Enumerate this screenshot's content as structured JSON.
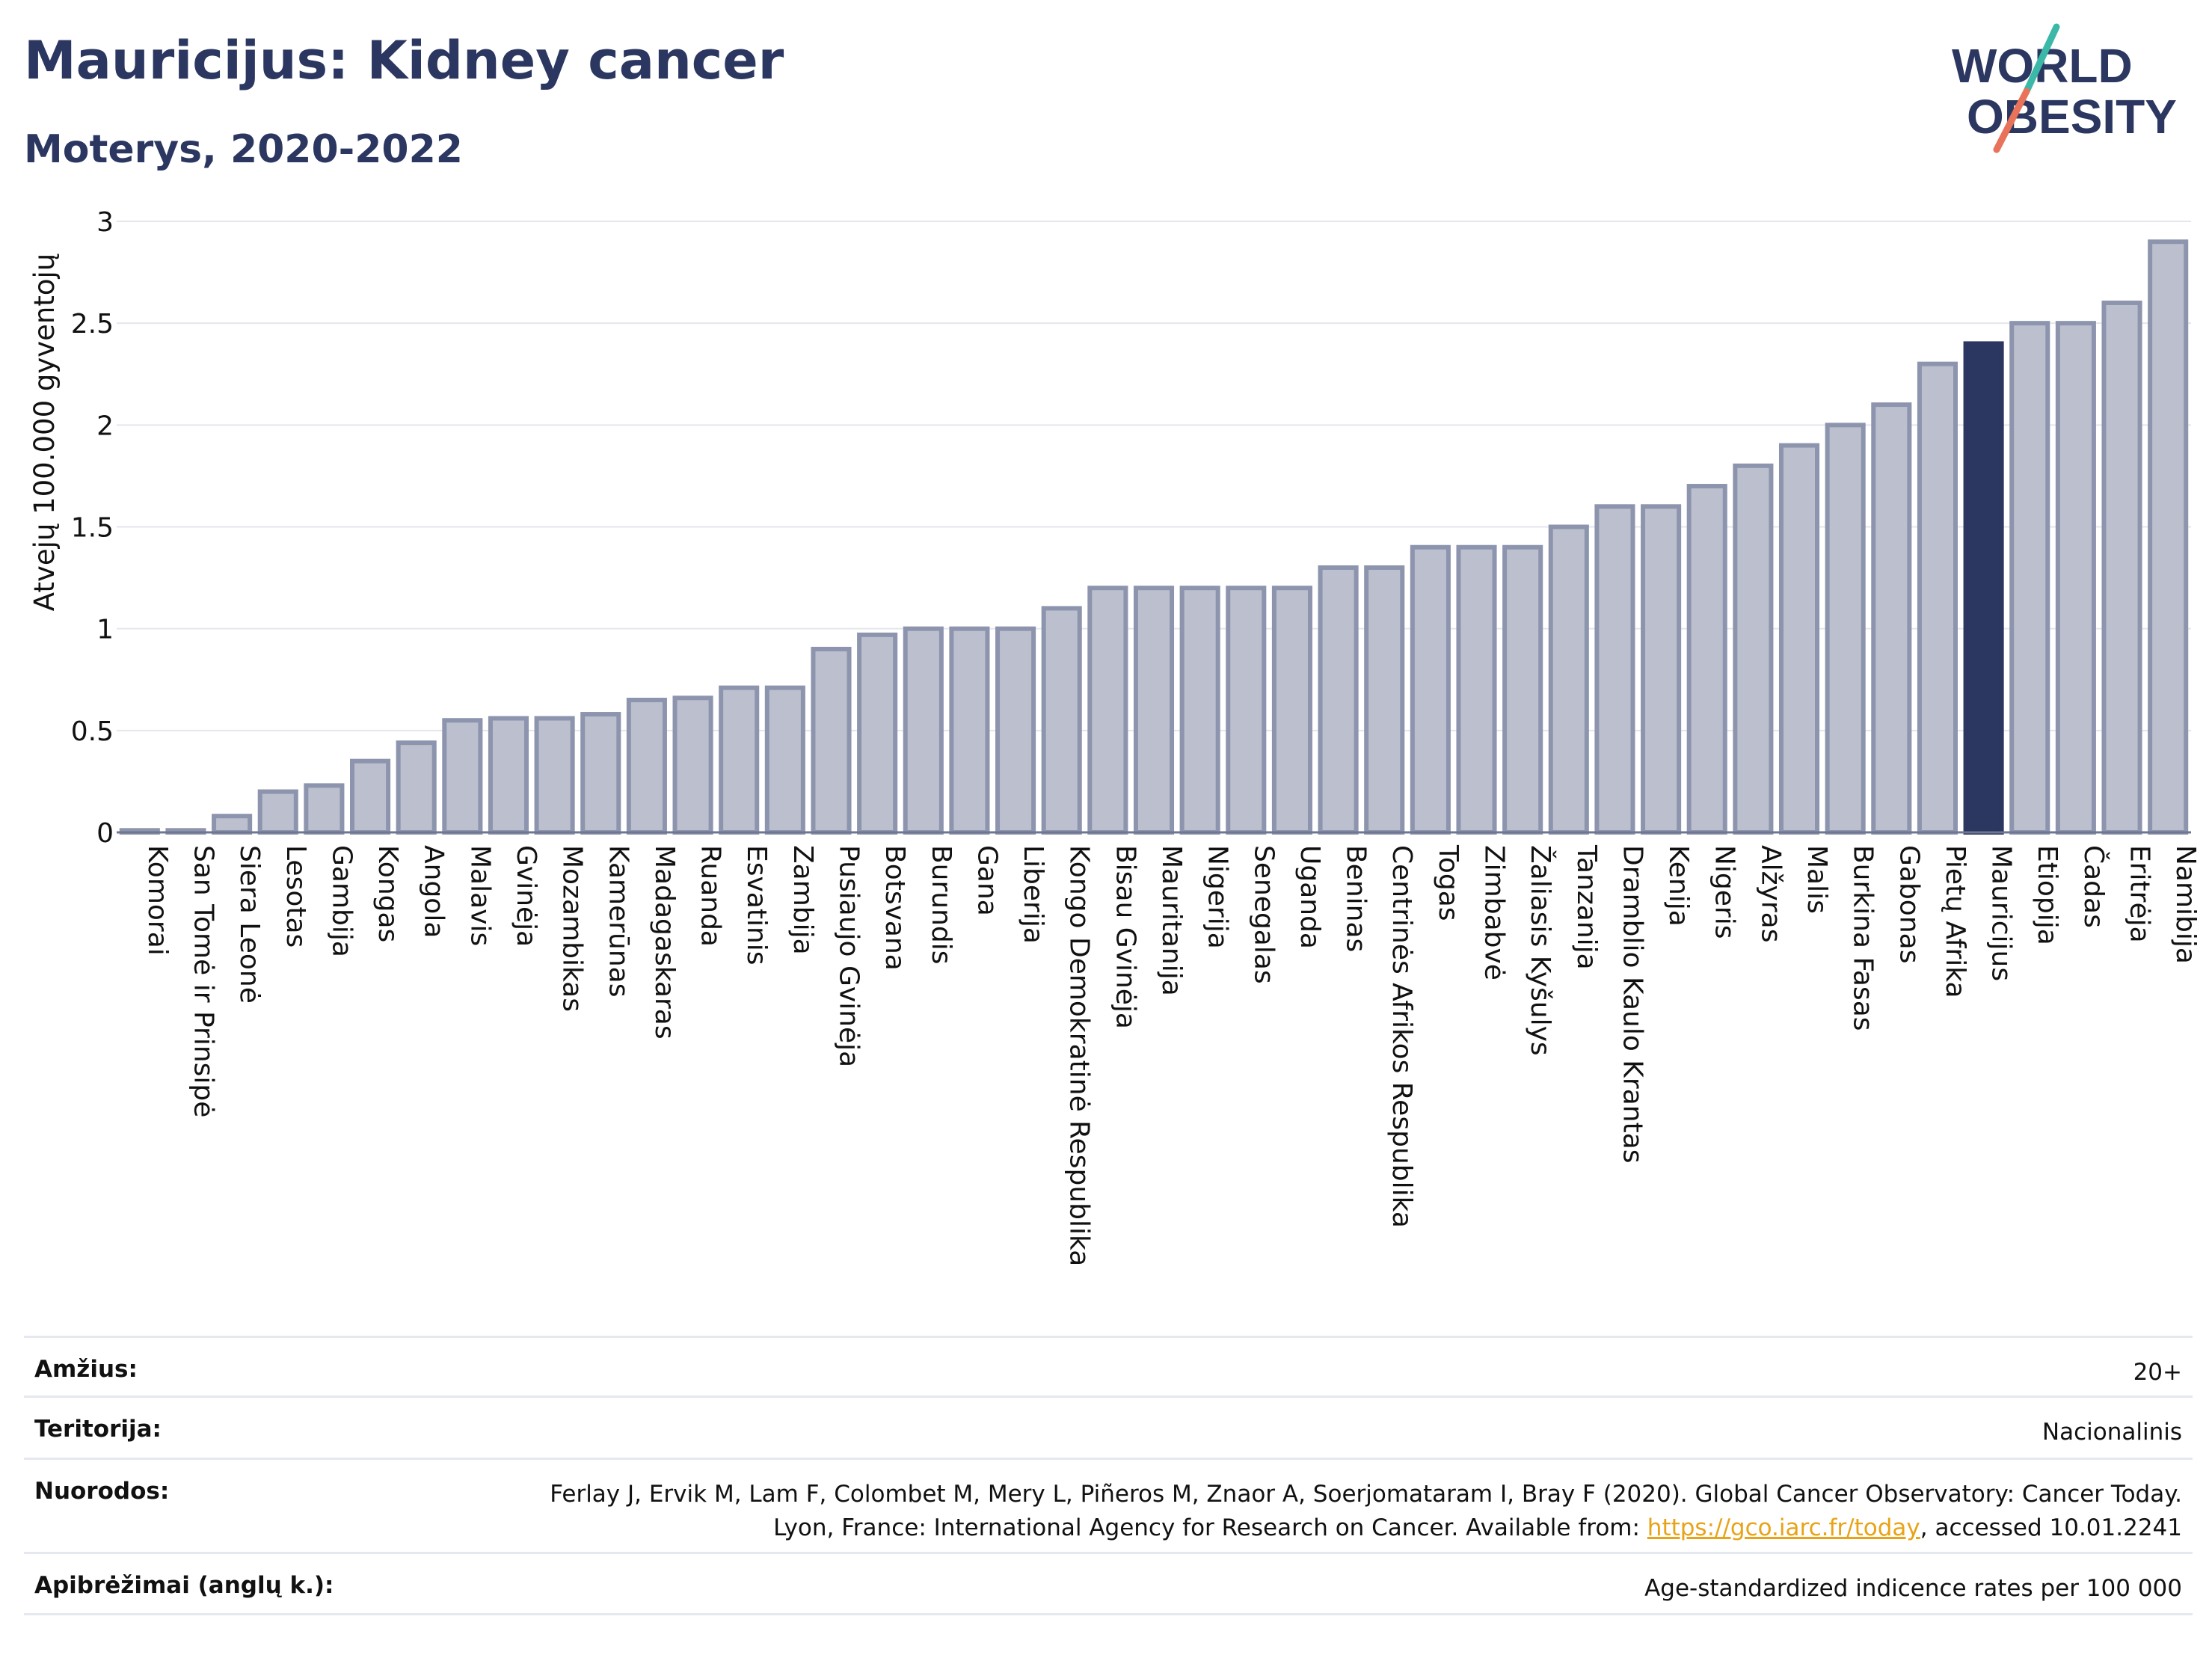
{
  "header": {
    "title": "Mauricijus: Kidney cancer",
    "subtitle": "Moterys, 2020-2022"
  },
  "logo": {
    "line1": "WORLD",
    "line2": "OBESITY",
    "accent_teal": "#3bb8a8",
    "accent_red": "#e8735a"
  },
  "colors": {
    "bar_fill": "#bcc0ce",
    "bar_stroke": "#8d94ad",
    "highlight_fill": "#2b3760",
    "title": "#2b3760",
    "gridline": "#e4e6ec"
  },
  "chart_data": {
    "type": "bar",
    "ylabel": "Atvejų 100.000 gyventojų",
    "ylim": [
      0,
      3
    ],
    "yticks": [
      0,
      0.5,
      1,
      1.5,
      2,
      2.5,
      3
    ],
    "ytick_labels": [
      "0",
      "0.5",
      "1",
      "1.5",
      "2",
      "2.5",
      "3"
    ],
    "grid": true,
    "highlight": "Mauricijus",
    "categories": [
      "Komorai",
      "San Tomė ir Prinsipė",
      "Siera Leonė",
      "Lesotas",
      "Gambija",
      "Kongas",
      "Angola",
      "Malavis",
      "Gvinėja",
      "Mozambikas",
      "Kamerūnas",
      "Madagaskaras",
      "Ruanda",
      "Esvatinis",
      "Zambija",
      "Pusiaujo Gvinėja",
      "Botsvana",
      "Burundis",
      "Gana",
      "Liberija",
      "Kongo Demokratinė Respublika",
      "Bisau Gvinėja",
      "Mauritanija",
      "Nigerija",
      "Senegalas",
      "Uganda",
      "Beninas",
      "Centrinės Afrikos Respublika",
      "Togas",
      "Zimbabvė",
      "Žaliasis Kyšulys",
      "Tanzanija",
      "Dramblio Kaulo Krantas",
      "Kenija",
      "Nigeris",
      "Alžyras",
      "Malis",
      "Burkina Fasas",
      "Gabonas",
      "Pietų Afrika",
      "Mauricijus",
      "Etiopija",
      "Čadas",
      "Eritrėja",
      "Namibija"
    ],
    "values": [
      0.01,
      0.01,
      0.08,
      0.2,
      0.23,
      0.35,
      0.44,
      0.55,
      0.56,
      0.56,
      0.58,
      0.65,
      0.66,
      0.71,
      0.71,
      0.9,
      0.97,
      1.0,
      1.0,
      1.0,
      1.1,
      1.2,
      1.2,
      1.2,
      1.2,
      1.2,
      1.3,
      1.3,
      1.4,
      1.4,
      1.4,
      1.5,
      1.6,
      1.6,
      1.7,
      1.8,
      1.9,
      2.0,
      2.1,
      2.3,
      2.4,
      2.5,
      2.5,
      2.6,
      2.9
    ]
  },
  "meta": {
    "age_label": "Amžius:",
    "age_value": "20+",
    "territory_label": "Teritorija:",
    "territory_value": "Nacionalinis",
    "refs_label": "Nuorodos:",
    "refs_text_1": "Ferlay J, Ervik M, Lam F, Colombet M, Mery L, Piñeros M, Znaor A, Soerjomataram I, Bray F (2020). Global Cancer Observatory: Cancer Today. Lyon, France: International Agency for Research on Cancer. Available from: ",
    "refs_link": "https://gco.iarc.fr/today",
    "refs_text_2": ", accessed 10.01.2241",
    "definitions_label": "Apibrėžimai (anglų k.):",
    "definitions_value": "Age-standardized indicence rates per 100 000"
  }
}
